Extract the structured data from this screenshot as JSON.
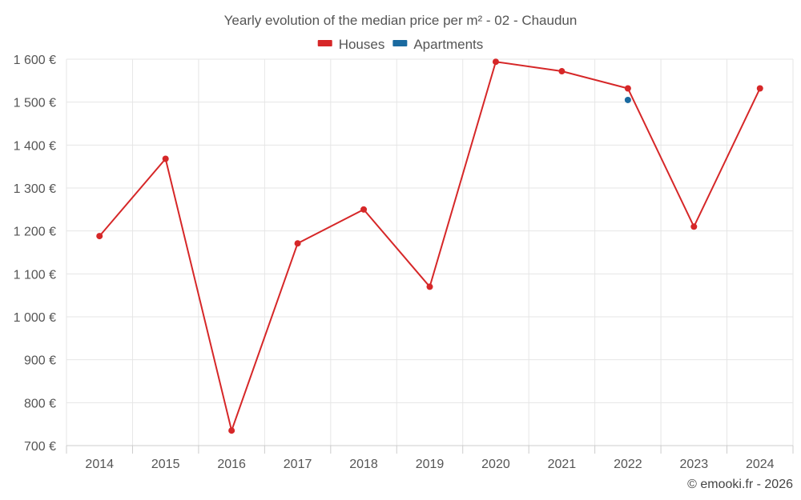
{
  "chart_data": {
    "type": "line",
    "title": "Yearly evolution of the median price per m² - 02 - Chaudun",
    "categories": [
      "2014",
      "2015",
      "2016",
      "2017",
      "2018",
      "2019",
      "2020",
      "2021",
      "2022",
      "2023",
      "2024"
    ],
    "series": [
      {
        "name": "Houses",
        "color": "#d62728",
        "values": [
          1188,
          1368,
          735,
          1171,
          1250,
          1070,
          1594,
          1572,
          1532,
          1210,
          1532
        ]
      },
      {
        "name": "Apartments",
        "color": "#1a6aa0",
        "values": [
          null,
          null,
          null,
          null,
          null,
          null,
          null,
          null,
          1505,
          null,
          null
        ]
      }
    ],
    "ylim": [
      700,
      1600
    ],
    "yticks": [
      700,
      800,
      900,
      1000,
      1100,
      1200,
      1300,
      1400,
      1500,
      1600
    ],
    "ytick_labels": [
      "700 €",
      "800 €",
      "900 €",
      "1 000 €",
      "1 100 €",
      "1 200 €",
      "1 300 €",
      "1 400 €",
      "1 500 €",
      "1 600 €"
    ],
    "xlabel": "",
    "ylabel": "",
    "legend_position": "top-center",
    "grid": true
  },
  "credit": "© emooki.fr - 2026"
}
